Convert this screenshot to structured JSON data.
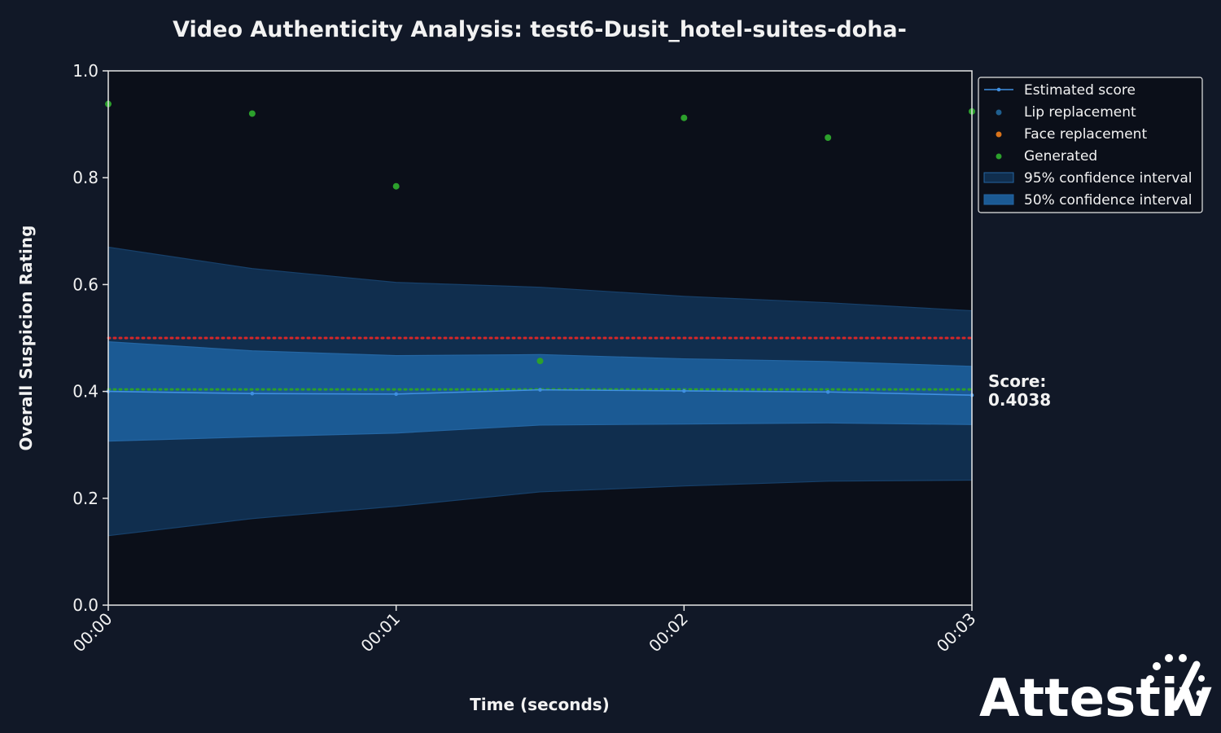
{
  "chart_data": {
    "type": "line",
    "title": "Video Authenticity Analysis: test6-Dusit_hotel-suites-doha-",
    "xlabel": "Time (seconds)",
    "ylabel": "Overall Suspicion Rating",
    "xlim": [
      0,
      3
    ],
    "ylim": [
      0,
      1.0
    ],
    "x_ticks": [
      {
        "value": 0,
        "label": "00:00"
      },
      {
        "value": 1,
        "label": "00:01"
      },
      {
        "value": 2,
        "label": "00:02"
      },
      {
        "value": 3,
        "label": "00:03"
      }
    ],
    "y_ticks": [
      {
        "value": 0.0,
        "label": "0.0"
      },
      {
        "value": 0.2,
        "label": "0.2"
      },
      {
        "value": 0.4,
        "label": "0.4"
      },
      {
        "value": 0.6,
        "label": "0.6"
      },
      {
        "value": 0.8,
        "label": "0.8"
      },
      {
        "value": 1.0,
        "label": "1.0"
      }
    ],
    "x": [
      0,
      0.5,
      1.0,
      1.5,
      2.0,
      2.5,
      3.0
    ],
    "estimated_score": [
      0.4,
      0.396,
      0.395,
      0.403,
      0.401,
      0.399,
      0.393
    ],
    "ci95_upper": [
      0.67,
      0.63,
      0.604,
      0.595,
      0.578,
      0.566,
      0.551
    ],
    "ci95_lower": [
      0.13,
      0.162,
      0.185,
      0.212,
      0.223,
      0.232,
      0.234
    ],
    "ci50_upper": [
      0.493,
      0.476,
      0.467,
      0.469,
      0.461,
      0.456,
      0.447
    ],
    "ci50_lower": [
      0.307,
      0.315,
      0.322,
      0.337,
      0.339,
      0.341,
      0.338
    ],
    "generated_points": [
      {
        "x": 0,
        "y": 0.938
      },
      {
        "x": 0.5,
        "y": 0.92
      },
      {
        "x": 1.0,
        "y": 0.784
      },
      {
        "x": 1.5,
        "y": 0.457
      },
      {
        "x": 2.0,
        "y": 0.912
      },
      {
        "x": 2.5,
        "y": 0.875
      },
      {
        "x": 3.0,
        "y": 0.924
      }
    ],
    "threshold_line": 0.5,
    "score_line": 0.4038,
    "grid": false,
    "legend_position": "top-right outside",
    "legend": [
      {
        "label": "Estimated score",
        "kind": "line-marker",
        "color": "#3f8fe0"
      },
      {
        "label": "Lip replacement",
        "kind": "dot",
        "color": "#1f5f8f"
      },
      {
        "label": "Face replacement",
        "kind": "dot",
        "color": "#d9731a"
      },
      {
        "label": "Generated",
        "kind": "dot",
        "color": "#2ca02c"
      },
      {
        "label": "95% confidence interval",
        "kind": "patch",
        "color": "#102e4e"
      },
      {
        "label": "50% confidence interval",
        "kind": "patch",
        "color": "#1b5a94"
      }
    ],
    "score_annotation": {
      "label": "Score:",
      "value": "0.4038"
    }
  },
  "colors": {
    "background": "#111827",
    "plot_background": "#0b0f19",
    "estimated": "#3f8fe0",
    "generated": "#2ca02c",
    "ci95": "#102e4e",
    "ci50": "#1b5a94",
    "threshold": "#d62728",
    "score_line": "#2ca02c"
  },
  "brand": {
    "logo_text": "Attestiv"
  }
}
